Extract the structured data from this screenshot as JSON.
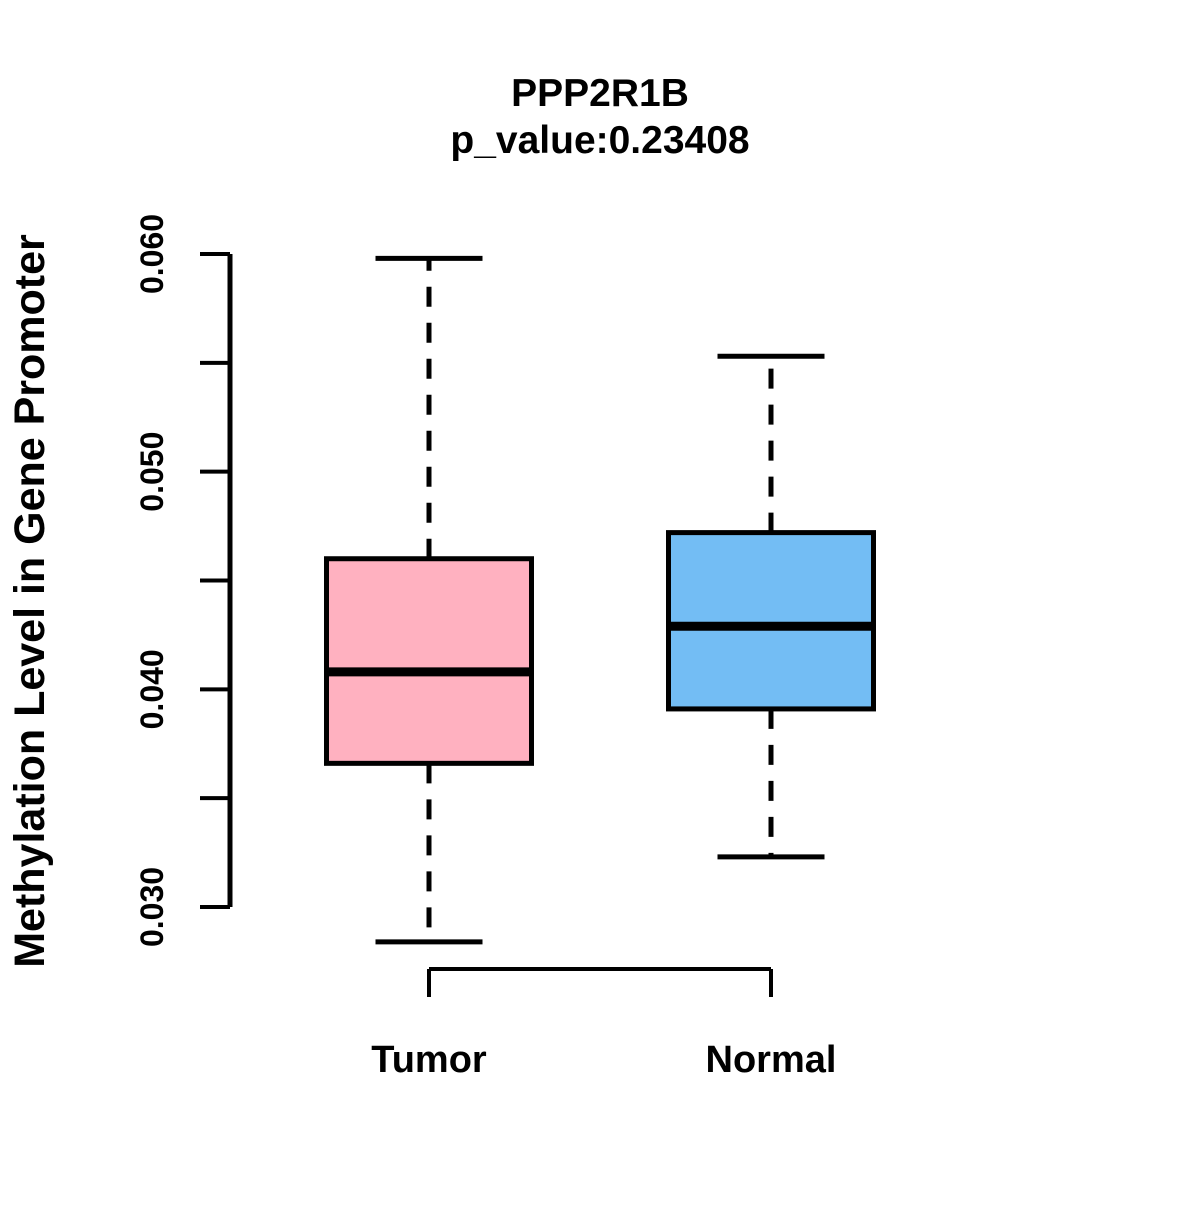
{
  "chart_data": {
    "type": "boxplot",
    "title": "PPP2R1B",
    "subtitle": "p_value:0.23408",
    "ylabel": "Methylation Level in Gene Promoter",
    "ylim": [
      0.03,
      0.06
    ],
    "yticks": [
      {
        "value": 0.03,
        "label": "0.030"
      },
      {
        "value": 0.035,
        "label": ""
      },
      {
        "value": 0.04,
        "label": "0.040"
      },
      {
        "value": 0.045,
        "label": ""
      },
      {
        "value": 0.05,
        "label": "0.050"
      },
      {
        "value": 0.055,
        "label": ""
      },
      {
        "value": 0.06,
        "label": "0.060"
      }
    ],
    "grid": false,
    "legend": "none",
    "groups": [
      {
        "label": "Tumor",
        "box_color": "#FFB1C0",
        "border_color": "#000000",
        "lower_whisker": 0.0284,
        "q1": 0.0366,
        "median": 0.0408,
        "q3": 0.046,
        "upper_whisker": 0.0598
      },
      {
        "label": "Normal",
        "box_color": "#73BDF4",
        "border_color": "#000000",
        "lower_whisker": 0.0323,
        "q1": 0.0391,
        "median": 0.0429,
        "q3": 0.0472,
        "upper_whisker": 0.0553
      }
    ]
  }
}
